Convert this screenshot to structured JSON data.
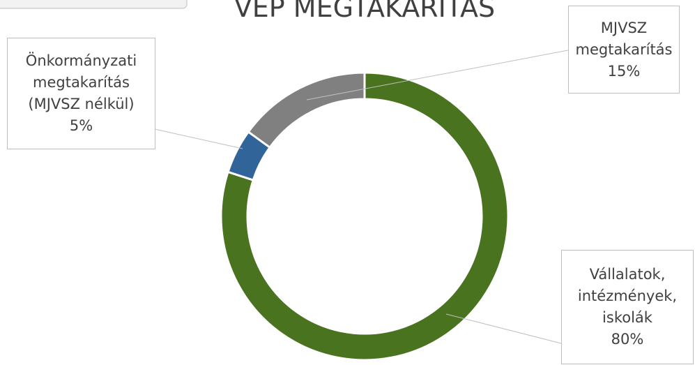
{
  "chart_data": {
    "type": "donut",
    "title": "VEP MEGTAKARÍTÁS",
    "categories": [
      "Vállalatok, intézmények, iskolák",
      "Önkormányzati megtakarítás (MJVSZ nélkül)",
      "MJVSZ megtakarítás"
    ],
    "values": [
      80,
      5,
      15
    ],
    "value_labels": [
      "80%",
      "5%",
      "15%"
    ],
    "colors": [
      "#4a7320",
      "#31659a",
      "#808080"
    ]
  }
}
